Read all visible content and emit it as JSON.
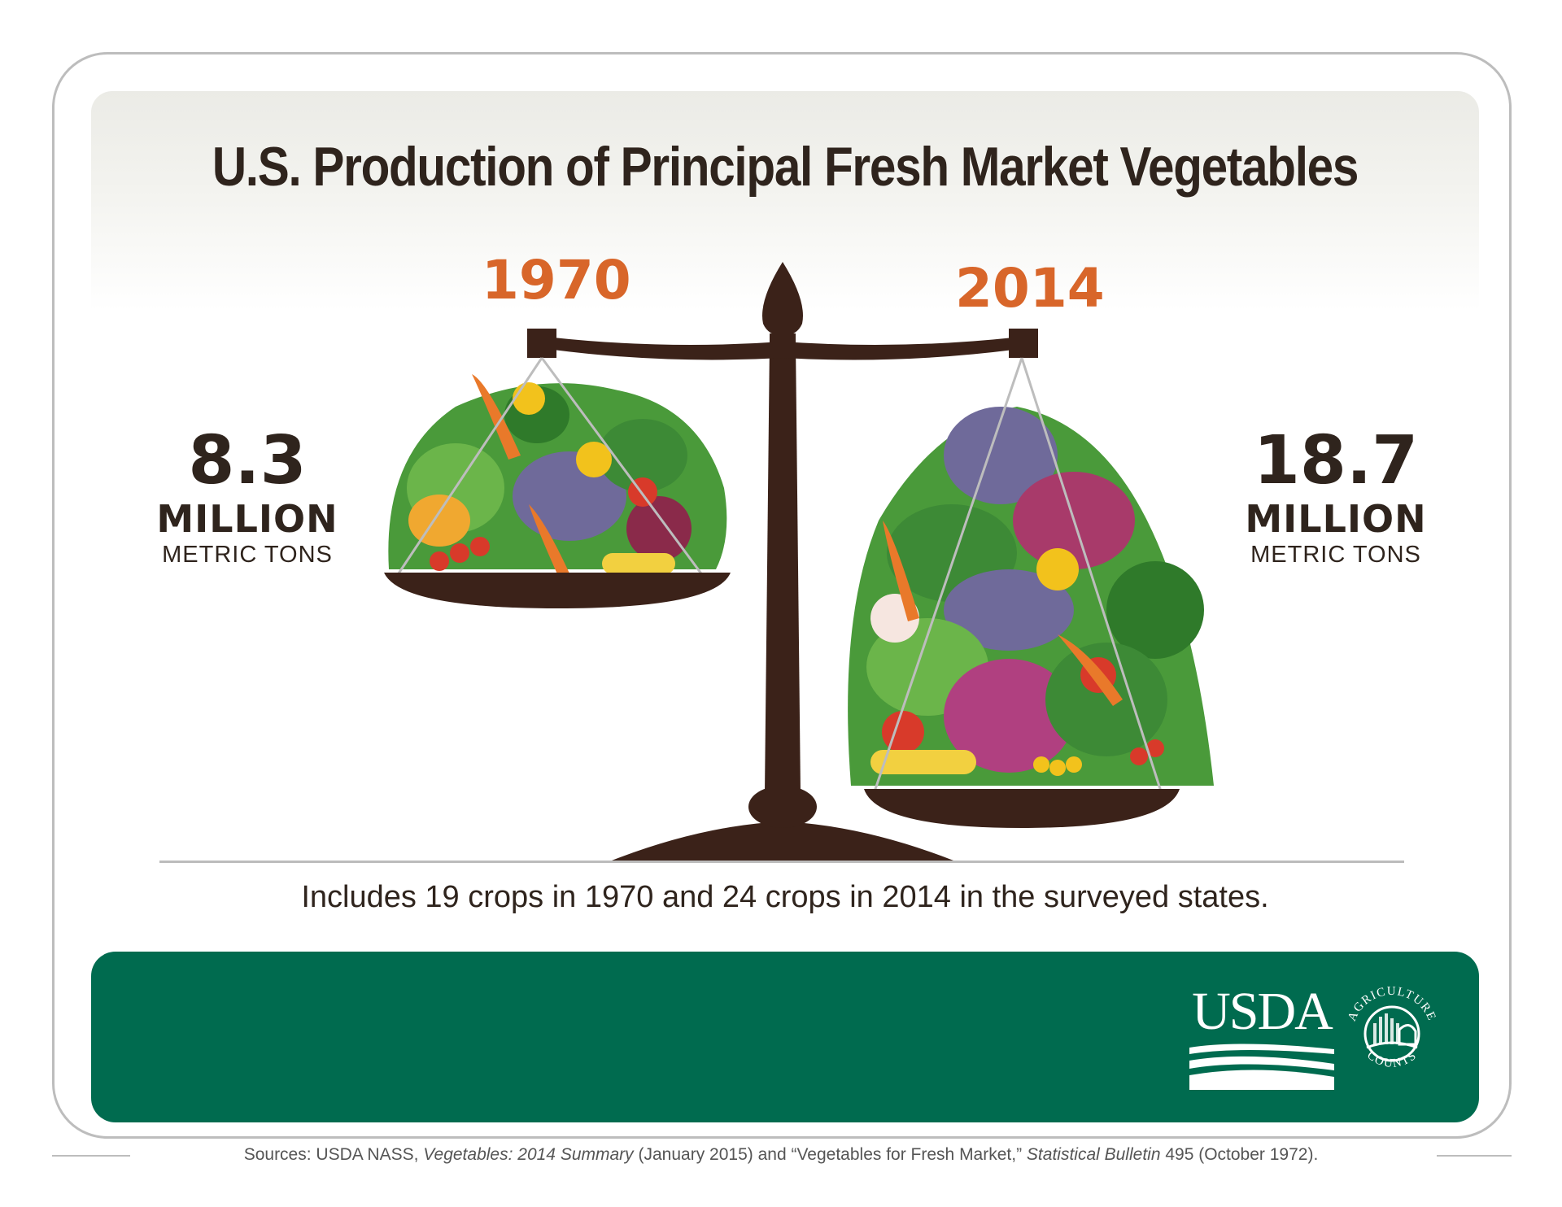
{
  "chart_data": {
    "type": "bar",
    "title": "U.S. Production of Principal Fresh Market Vegetables",
    "categories": [
      "1970",
      "2014"
    ],
    "values": [
      8.3,
      18.7
    ],
    "value_labels": {
      "left": {
        "number": "8.3",
        "magnitude": "MILLION",
        "unit": "METRIC TONS"
      },
      "right": {
        "number": "18.7",
        "magnitude": "MILLION",
        "unit": "METRIC TONS"
      }
    },
    "footnote": "Includes 19 crops in 1970 and 24 crops in 2014 in the surveyed states."
  },
  "branding": {
    "usda": "USDA",
    "seal_top": "AGRICULTURE",
    "seal_bottom": "COUNTS"
  },
  "source": {
    "prefix": "Sources: USDA NASS, ",
    "title1": "Vegetables: 2014 Summary",
    "mid1": " (January 2015) and “Vegetables for Fresh Market,” ",
    "title2": "Statistical Bulletin",
    "suffix": " 495 (October 1972)."
  },
  "colors": {
    "title": "#2f241d",
    "year": "#d8662a",
    "scale": "#3b2219",
    "band": "#006b4f"
  }
}
